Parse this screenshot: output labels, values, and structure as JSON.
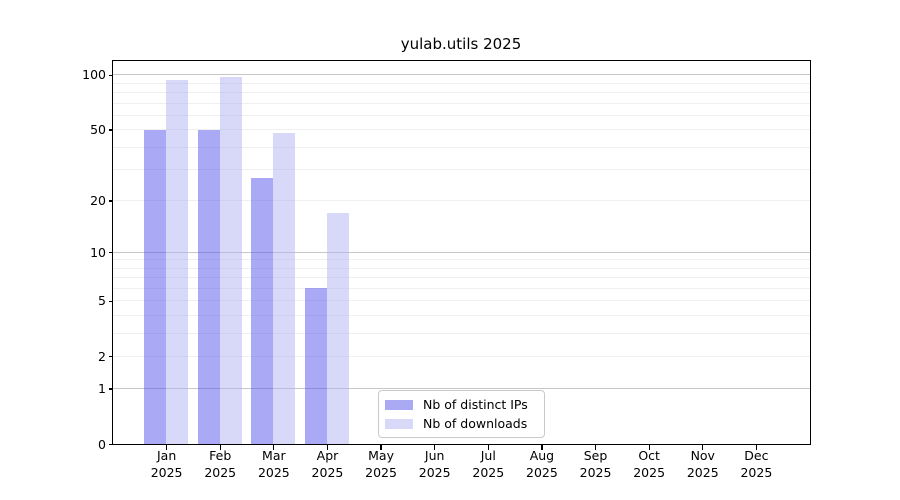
{
  "chart_data": {
    "type": "bar",
    "title": "yulab.utils 2025",
    "categories": [
      "Jan 2025",
      "Feb 2025",
      "Mar 2025",
      "Apr 2025",
      "May 2025",
      "Jun 2025",
      "Jul 2025",
      "Aug 2025",
      "Sep 2025",
      "Oct 2025",
      "Nov 2025",
      "Dec 2025"
    ],
    "series": [
      {
        "name": "Nb of distinct IPs",
        "color": "#a9a9f4",
        "fill_rgba": "rgba(83,83,237,0.5)",
        "values": [
          50,
          50,
          27,
          6,
          0,
          0,
          0,
          0,
          0,
          0,
          0,
          0
        ]
      },
      {
        "name": "Nb of downloads",
        "color": "#d8d8f8",
        "fill_rgba": "rgba(177,177,241,0.5)",
        "values": [
          94,
          97,
          48,
          17,
          0,
          0,
          0,
          0,
          0,
          0,
          0,
          0
        ]
      }
    ],
    "xlabel": "",
    "ylabel": "",
    "y_scale": "log10(1+x)",
    "ylim": [
      0,
      120
    ],
    "y_ticks": [
      {
        "value": 0,
        "label": "0"
      },
      {
        "value": 1,
        "label": "1"
      },
      {
        "value": 2,
        "label": "2"
      },
      {
        "value": 5,
        "label": "5"
      },
      {
        "value": 10,
        "label": "10"
      },
      {
        "value": 20,
        "label": "20"
      },
      {
        "value": 50,
        "label": "50"
      },
      {
        "value": 100,
        "label": "100"
      }
    ],
    "grid": {
      "orientation": "horizontal",
      "major_values": [
        1,
        10,
        100
      ],
      "minor_values": [
        2,
        3,
        4,
        5,
        6,
        7,
        8,
        9,
        20,
        30,
        40,
        50,
        60,
        70,
        80,
        90
      ],
      "major_color": "#c6c6c6",
      "minor_color": "#efefef"
    },
    "legend": {
      "position": "lower center",
      "items": [
        "Nb of distinct IPs",
        "Nb of downloads"
      ]
    }
  }
}
